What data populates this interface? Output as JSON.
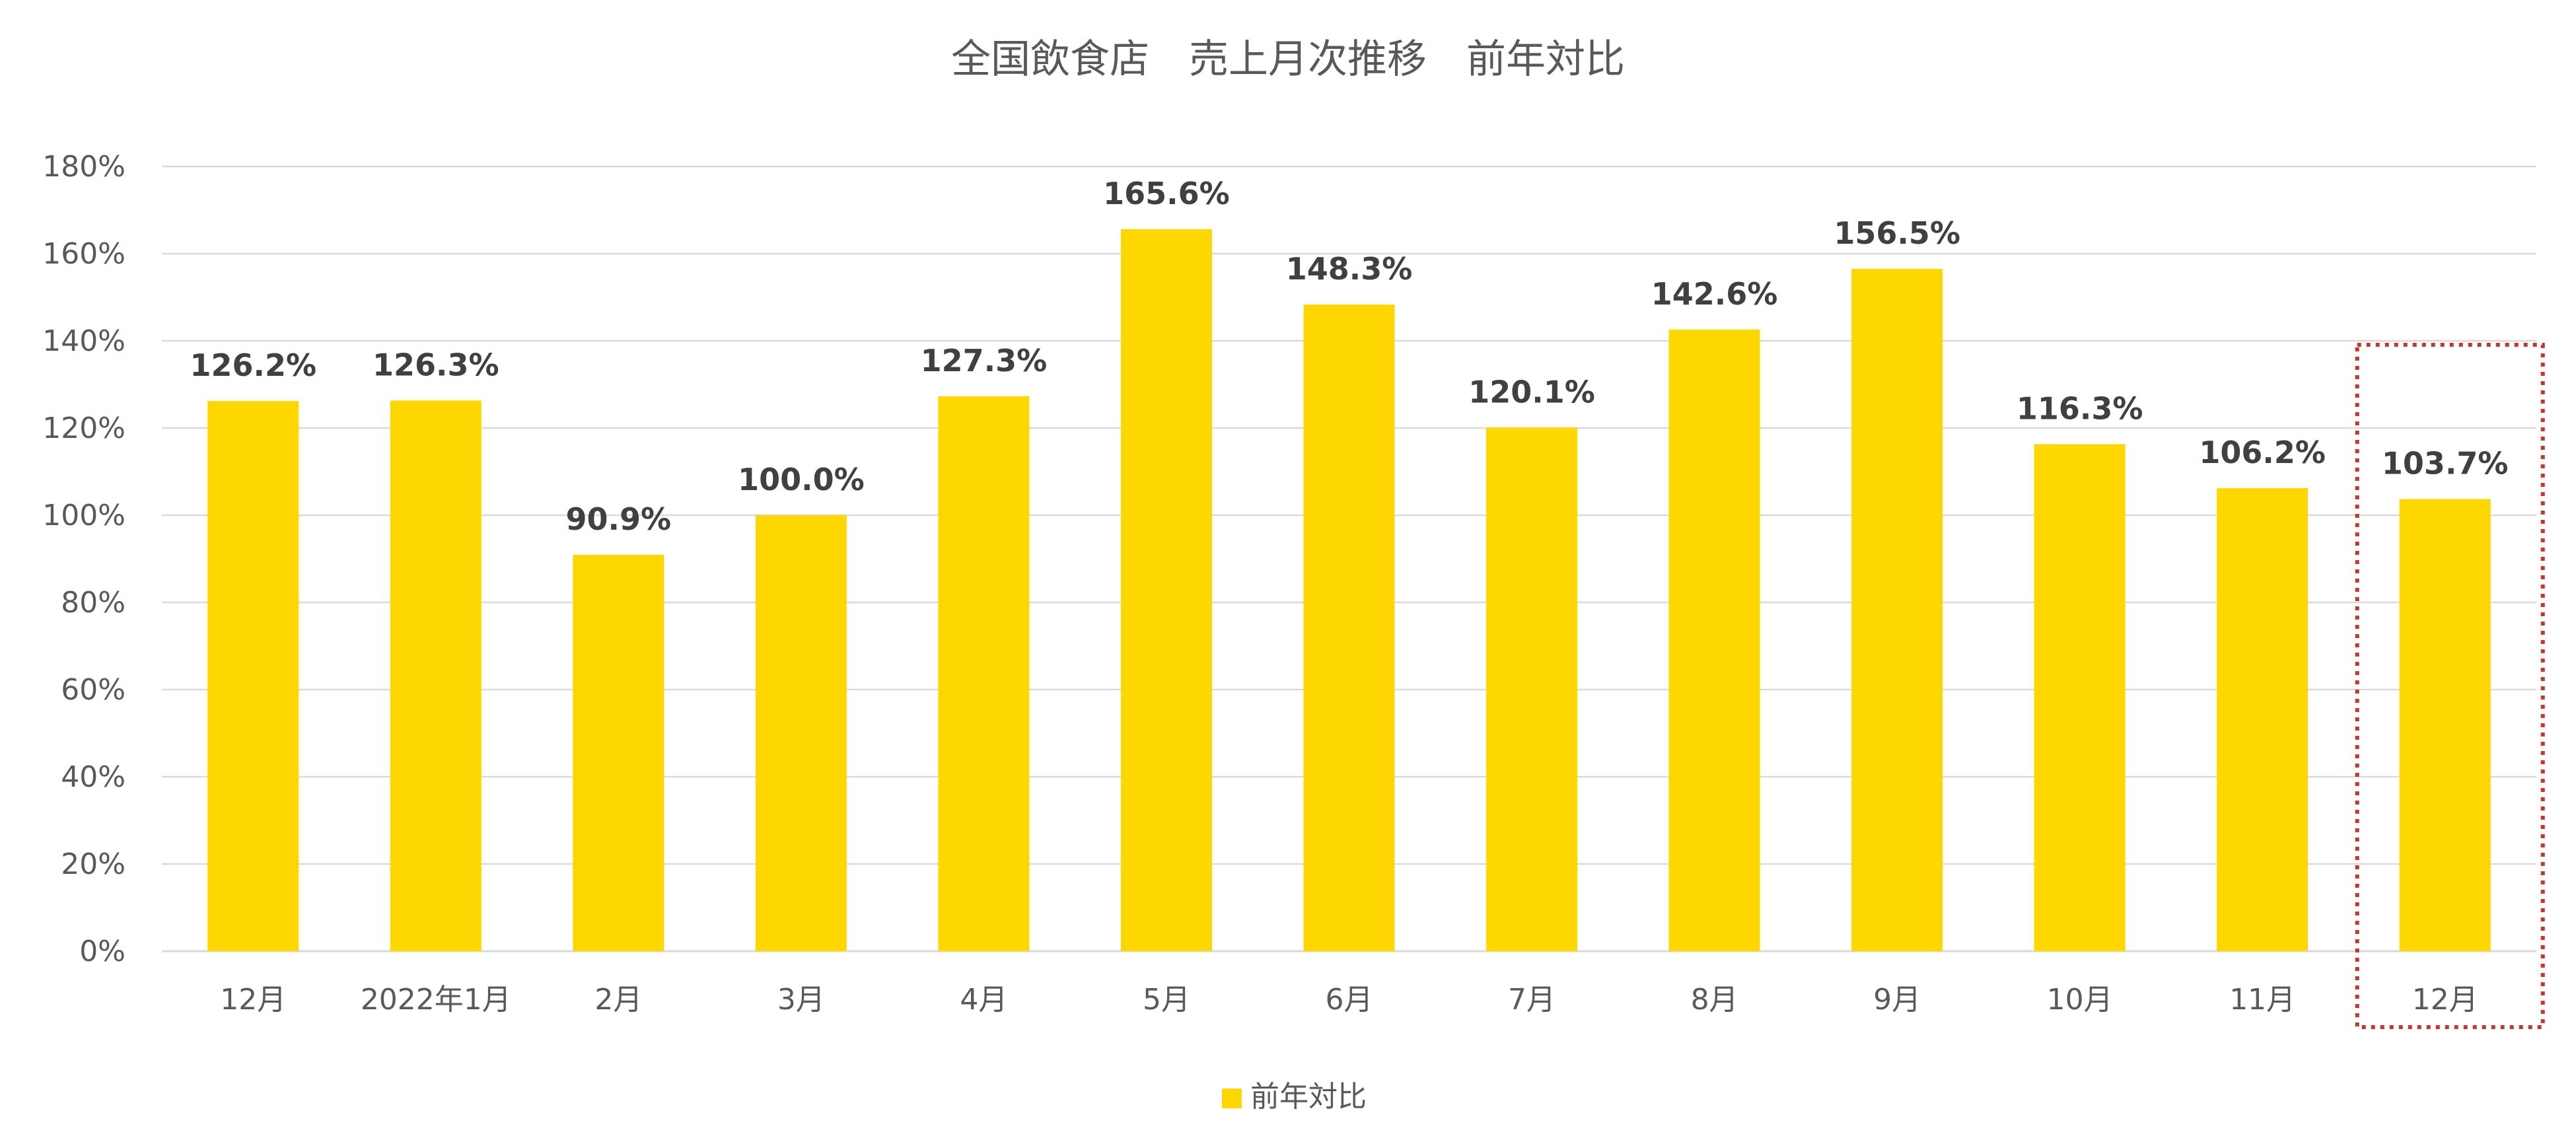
{
  "chart_data": {
    "type": "bar",
    "title": "全国飲食店　売上月次推移　前年対比",
    "categories": [
      "12月",
      "2022年1月",
      "2月",
      "3月",
      "4月",
      "5月",
      "6月",
      "7月",
      "8月",
      "9月",
      "10月",
      "11月",
      "12月"
    ],
    "series": [
      {
        "name": "前年対比",
        "color": "#FFD700",
        "values": [
          126.2,
          126.3,
          90.9,
          100.0,
          127.3,
          165.6,
          148.3,
          120.1,
          142.6,
          156.5,
          116.3,
          106.2,
          103.7
        ],
        "labels": [
          "126.2%",
          "126.3%",
          "90.9%",
          "100.0%",
          "127.3%",
          "165.6%",
          "148.3%",
          "120.1%",
          "142.6%",
          "156.5%",
          "116.3%",
          "106.2%",
          "103.7%"
        ]
      }
    ],
    "ylim": [
      0,
      180
    ],
    "yticks": [
      "0%",
      "20%",
      "40%",
      "60%",
      "80%",
      "100%",
      "120%",
      "140%",
      "160%",
      "180%"
    ],
    "grid": true,
    "legend_position": "bottom-center",
    "highlight": {
      "category_index": 12,
      "style": "dotted",
      "color": "#C0392B"
    },
    "colors": {
      "bar": "#FFD700",
      "grid": "#D9D9D9",
      "axis_text": "#595959",
      "label_text": "#404040"
    }
  }
}
